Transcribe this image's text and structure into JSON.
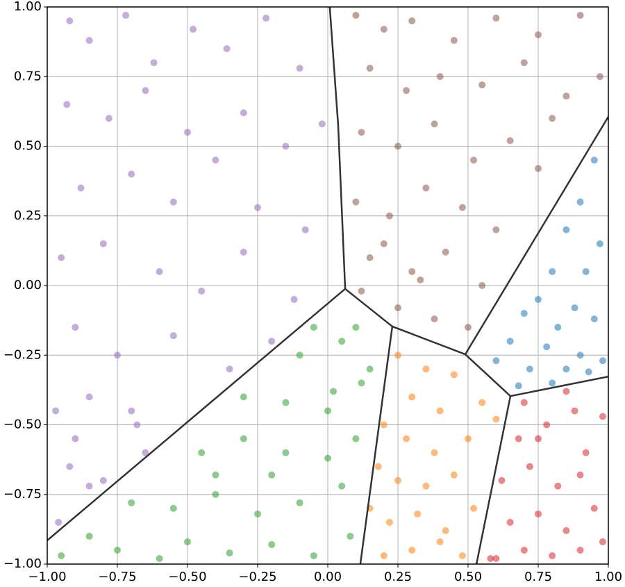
{
  "chart_data": {
    "type": "scatter",
    "xlim": [
      -1,
      1
    ],
    "ylim": [
      -1,
      1
    ],
    "xticks": [
      {
        "value": -1,
        "label": "−1.00"
      },
      {
        "value": -0.75,
        "label": "−0.75"
      },
      {
        "value": -0.5,
        "label": "−0.50"
      },
      {
        "value": -0.25,
        "label": "−0.25"
      },
      {
        "value": 0,
        "label": "0.00"
      },
      {
        "value": 0.25,
        "label": "0.25"
      },
      {
        "value": 0.5,
        "label": "0.50"
      },
      {
        "value": 0.75,
        "label": "0.75"
      },
      {
        "value": 1,
        "label": "1.00"
      }
    ],
    "yticks": [
      {
        "value": -1,
        "label": "−1.00"
      },
      {
        "value": -0.75,
        "label": "−0.75"
      },
      {
        "value": -0.5,
        "label": "−0.50"
      },
      {
        "value": -0.25,
        "label": "−0.25"
      },
      {
        "value": 0,
        "label": "0.00"
      },
      {
        "value": 0.25,
        "label": "0.25"
      },
      {
        "value": 0.5,
        "label": "0.50"
      },
      {
        "value": 0.75,
        "label": "0.75"
      },
      {
        "value": 1,
        "label": "1.00"
      }
    ],
    "grid": true,
    "series": [
      {
        "color": "#9467bd",
        "x": [
          -0.92,
          -0.85,
          -0.72,
          -0.62,
          -0.48,
          -0.36,
          -0.22,
          -0.1,
          -0.93,
          -0.78,
          -0.65,
          -0.5,
          -0.3,
          -0.15,
          -0.02,
          -0.88,
          -0.7,
          -0.55,
          -0.4,
          -0.25,
          -0.08,
          -0.95,
          -0.8,
          -0.6,
          -0.45,
          -0.3,
          -0.12,
          -0.9,
          -0.75,
          -0.55,
          -0.35,
          -0.2,
          -0.97,
          -0.85,
          -0.68,
          -0.7,
          -0.92,
          -0.8,
          -0.65,
          -0.96,
          -0.85,
          -0.9
        ],
        "values": [
          0.95,
          0.88,
          0.97,
          0.8,
          0.92,
          0.85,
          0.96,
          0.78,
          0.65,
          0.6,
          0.7,
          0.55,
          0.62,
          0.5,
          0.58,
          0.35,
          0.4,
          0.3,
          0.45,
          0.28,
          0.2,
          0.1,
          0.15,
          0.05,
          -0.02,
          0.12,
          -0.05,
          -0.15,
          -0.25,
          -0.18,
          -0.3,
          -0.2,
          -0.45,
          -0.4,
          -0.5,
          -0.45,
          -0.65,
          -0.7,
          -0.6,
          -0.85,
          -0.72,
          -0.55
        ]
      },
      {
        "color": "#8c564b",
        "x": [
          0.1,
          0.2,
          0.3,
          0.45,
          0.6,
          0.75,
          0.9,
          0.15,
          0.28,
          0.4,
          0.55,
          0.7,
          0.85,
          0.97,
          0.12,
          0.25,
          0.38,
          0.52,
          0.65,
          0.8,
          0.1,
          0.22,
          0.35,
          0.48,
          0.6,
          0.75,
          0.15,
          0.3,
          0.42,
          0.55,
          0.12,
          0.25,
          0.38,
          0.5,
          0.2,
          0.33
        ],
        "values": [
          0.97,
          0.92,
          0.95,
          0.88,
          0.96,
          0.9,
          0.97,
          0.78,
          0.7,
          0.75,
          0.72,
          0.8,
          0.68,
          0.75,
          0.55,
          0.5,
          0.58,
          0.45,
          0.52,
          0.6,
          0.3,
          0.25,
          0.35,
          0.28,
          0.2,
          0.42,
          0.1,
          0.05,
          0.12,
          0.0,
          -0.02,
          -0.08,
          -0.12,
          -0.15,
          0.15,
          0.02
        ]
      },
      {
        "color": "#1f77b4",
        "x": [
          0.95,
          0.9,
          0.85,
          0.97,
          0.8,
          0.92,
          0.75,
          0.88,
          0.7,
          0.82,
          0.95,
          0.65,
          0.78,
          0.9,
          0.6,
          0.72,
          0.85,
          0.98,
          0.68,
          0.8,
          0.93
        ],
        "values": [
          0.45,
          0.3,
          0.2,
          0.15,
          0.05,
          0.05,
          -0.05,
          -0.08,
          -0.1,
          -0.15,
          -0.12,
          -0.2,
          -0.22,
          -0.25,
          -0.27,
          -0.3,
          -0.3,
          -0.27,
          -0.36,
          -0.35,
          -0.31
        ]
      },
      {
        "color": "#d62728",
        "x": [
          0.6,
          0.7,
          0.8,
          0.9,
          0.98,
          0.65,
          0.75,
          0.85,
          0.95,
          0.62,
          0.72,
          0.82,
          0.92,
          0.58,
          0.68,
          0.78,
          0.88,
          0.98,
          0.7,
          0.85,
          0.75,
          0.9
        ],
        "values": [
          -0.98,
          -0.95,
          -0.97,
          -0.95,
          -0.92,
          -0.85,
          -0.82,
          -0.88,
          -0.8,
          -0.7,
          -0.65,
          -0.72,
          -0.6,
          -0.98,
          -0.55,
          -0.5,
          -0.45,
          -0.47,
          -0.42,
          -0.38,
          -0.55,
          -0.68
        ]
      },
      {
        "color": "#ff7f0e",
        "x": [
          0.25,
          0.35,
          0.45,
          0.3,
          0.4,
          0.55,
          0.2,
          0.28,
          0.38,
          0.5,
          0.18,
          0.25,
          0.35,
          0.45,
          0.15,
          0.22,
          0.32,
          0.42,
          0.52,
          0.2,
          0.3,
          0.4,
          0.48,
          0.6
        ],
        "values": [
          -0.25,
          -0.3,
          -0.32,
          -0.4,
          -0.45,
          -0.42,
          -0.5,
          -0.55,
          -0.6,
          -0.55,
          -0.65,
          -0.7,
          -0.72,
          -0.68,
          -0.8,
          -0.85,
          -0.82,
          -0.88,
          -0.8,
          -0.97,
          -0.95,
          -0.92,
          -0.97,
          -0.48
        ]
      },
      {
        "color": "#2ca02c",
        "x": [
          -0.95,
          -0.85,
          -0.75,
          -0.6,
          -0.5,
          -0.35,
          -0.2,
          -0.05,
          0.08,
          -0.7,
          -0.55,
          -0.4,
          -0.25,
          -0.1,
          0.05,
          -0.45,
          -0.3,
          -0.15,
          0.0,
          0.1,
          -0.3,
          -0.15,
          0.02,
          0.12,
          -0.1,
          0.05,
          0.15,
          -0.05,
          0.1,
          -0.4,
          -0.2,
          0.0
        ],
        "values": [
          -0.97,
          -0.9,
          -0.95,
          -0.98,
          -0.92,
          -0.96,
          -0.93,
          -0.97,
          -0.9,
          -0.78,
          -0.8,
          -0.75,
          -0.82,
          -0.78,
          -0.72,
          -0.6,
          -0.55,
          -0.6,
          -0.62,
          -0.55,
          -0.4,
          -0.42,
          -0.38,
          -0.35,
          -0.25,
          -0.2,
          -0.3,
          -0.15,
          -0.15,
          -0.68,
          -0.68,
          -0.45
        ]
      }
    ],
    "boundaries": [
      {
        "x": [
          0.007,
          0.037,
          0.062
        ],
        "y": [
          1,
          0.576,
          -0.012
        ]
      },
      {
        "x": [
          -1,
          0.062
        ],
        "y": [
          -0.915,
          -0.012
        ]
      },
      {
        "x": [
          0.062,
          0.23,
          0.49,
          0.651,
          1
        ],
        "y": [
          -0.012,
          -0.147,
          -0.247,
          -0.397,
          -0.327
        ]
      },
      {
        "x": [
          0.23,
          0.116
        ],
        "y": [
          -0.147,
          -1
        ]
      },
      {
        "x": [
          0.49,
          1
        ],
        "y": [
          -0.247,
          0.606
        ]
      },
      {
        "x": [
          0.651,
          0.53
        ],
        "y": [
          -0.397,
          -1
        ]
      }
    ],
    "boundary_color": "#333333"
  }
}
